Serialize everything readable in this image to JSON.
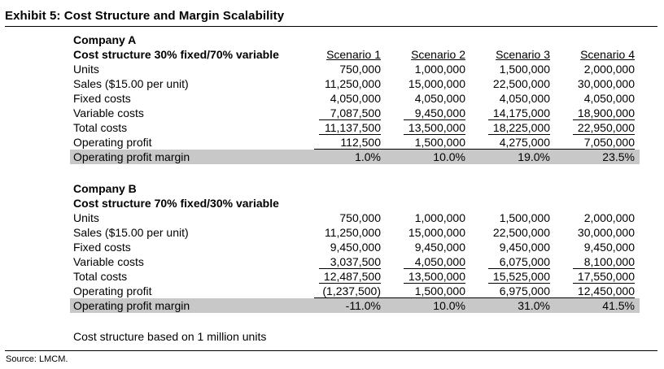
{
  "title": "Exhibit 5: Cost Structure and Margin Scalability",
  "source": "Source: LMCM.",
  "note": "Cost structure based on 1 million units",
  "scenario_headers": [
    "Scenario 1",
    "Scenario 2",
    "Scenario 3",
    "Scenario 4"
  ],
  "company_a": {
    "name": "Company A",
    "structure": "Cost structure 30% fixed/70% variable",
    "rows": [
      {
        "label": "Units",
        "values": [
          "750,000",
          "1,000,000",
          "1,500,000",
          "2,000,000"
        ]
      },
      {
        "label": "Sales ($15.00 per unit)",
        "values": [
          "11,250,000",
          "15,000,000",
          "22,500,000",
          "30,000,000"
        ]
      },
      {
        "label": "Fixed costs",
        "values": [
          "4,050,000",
          "4,050,000",
          "4,050,000",
          "4,050,000"
        ]
      },
      {
        "label": "Variable costs",
        "values": [
          "7,087,500",
          "9,450,000",
          "14,175,000",
          "18,900,000"
        ]
      },
      {
        "label": "Total costs",
        "values": [
          "11,137,500",
          "13,500,000",
          "18,225,000",
          "22,950,000"
        ]
      },
      {
        "label": "Operating profit",
        "values": [
          "112,500",
          "1,500,000",
          "4,275,000",
          "7,050,000"
        ]
      },
      {
        "label": "Operating profit margin",
        "values": [
          "1.0%",
          "10.0%",
          "19.0%",
          "23.5%"
        ]
      }
    ]
  },
  "company_b": {
    "name": "Company B",
    "structure": "Cost structure 70% fixed/30% variable",
    "rows": [
      {
        "label": "Units",
        "values": [
          "750,000",
          "1,000,000",
          "1,500,000",
          "2,000,000"
        ]
      },
      {
        "label": "Sales ($15.00 per unit)",
        "values": [
          "11,250,000",
          "15,000,000",
          "22,500,000",
          "30,000,000"
        ]
      },
      {
        "label": "Fixed costs",
        "values": [
          "9,450,000",
          "9,450,000",
          "9,450,000",
          "9,450,000"
        ]
      },
      {
        "label": "Variable costs",
        "values": [
          "3,037,500",
          "4,050,000",
          "6,075,000",
          "8,100,000"
        ]
      },
      {
        "label": "Total costs",
        "values": [
          "12,487,500",
          "13,500,000",
          "15,525,000",
          "17,550,000"
        ]
      },
      {
        "label": "Operating profit",
        "values": [
          "(1,237,500)",
          "1,500,000",
          "6,975,000",
          "12,450,000"
        ]
      },
      {
        "label": "Operating profit margin",
        "values": [
          "-11.0%",
          "10.0%",
          "31.0%",
          "41.5%"
        ]
      }
    ]
  }
}
